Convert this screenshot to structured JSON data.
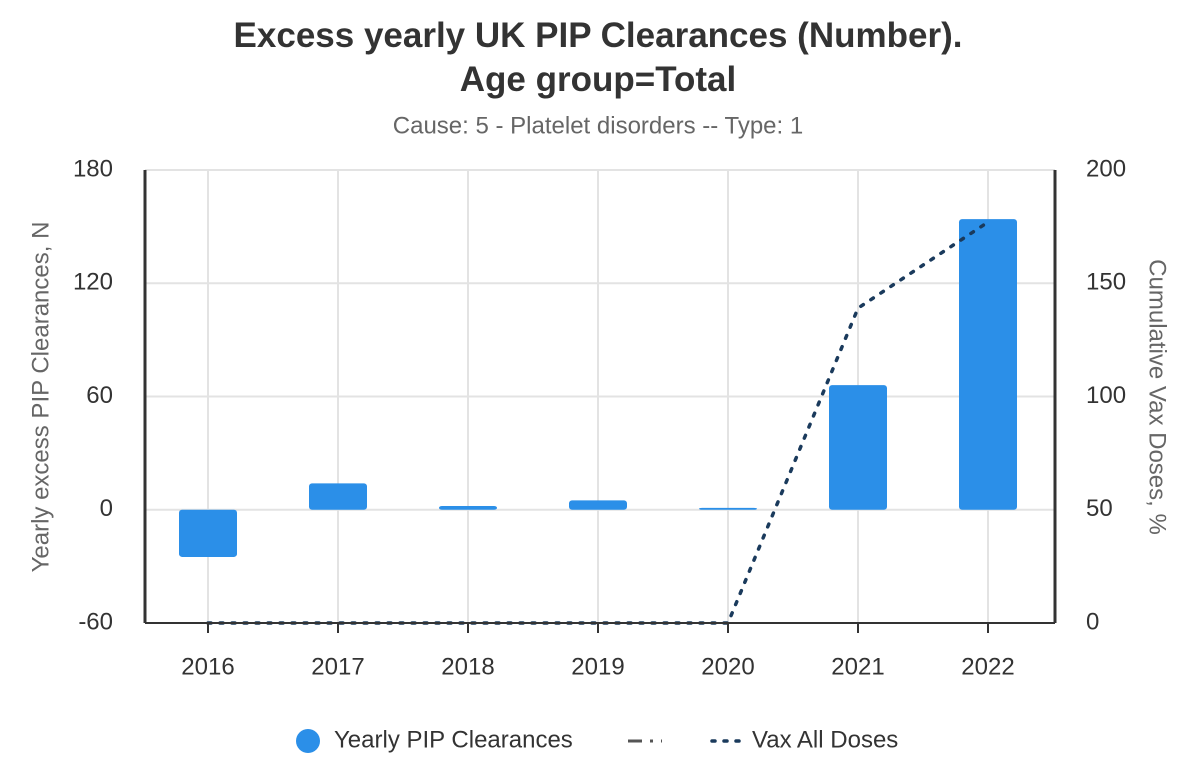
{
  "chart_data": {
    "type": "bar",
    "title": "Excess yearly UK PIP Clearances (Number). Age group=Total",
    "subtitle": "Cause: 5 - Platelet disorders -- Type: 1",
    "y_label": "Yearly excess PIP Clearances, N",
    "y2_label": "Cumulative Vax Doses, %",
    "categories": [
      "2016",
      "2017",
      "2018",
      "2019",
      "2020",
      "2021",
      "2022"
    ],
    "series": [
      {
        "name": "Yearly PIP Clearances",
        "type": "bar",
        "color": "#2b8fe8",
        "values": [
          -25,
          14,
          2,
          5,
          1,
          66,
          154
        ]
      },
      {
        "name": "Vax All Doses",
        "type": "line",
        "axis": "y2",
        "color": "#1a3a5c",
        "values": [
          0,
          0,
          0,
          0,
          0,
          139,
          177
        ]
      }
    ],
    "ylim": [
      -60,
      180
    ],
    "yticks": [
      -60,
      0,
      60,
      120,
      180
    ],
    "y2lim": [
      0,
      200
    ],
    "y2ticks": [
      0,
      50,
      100,
      150,
      200
    ],
    "grid": true
  }
}
